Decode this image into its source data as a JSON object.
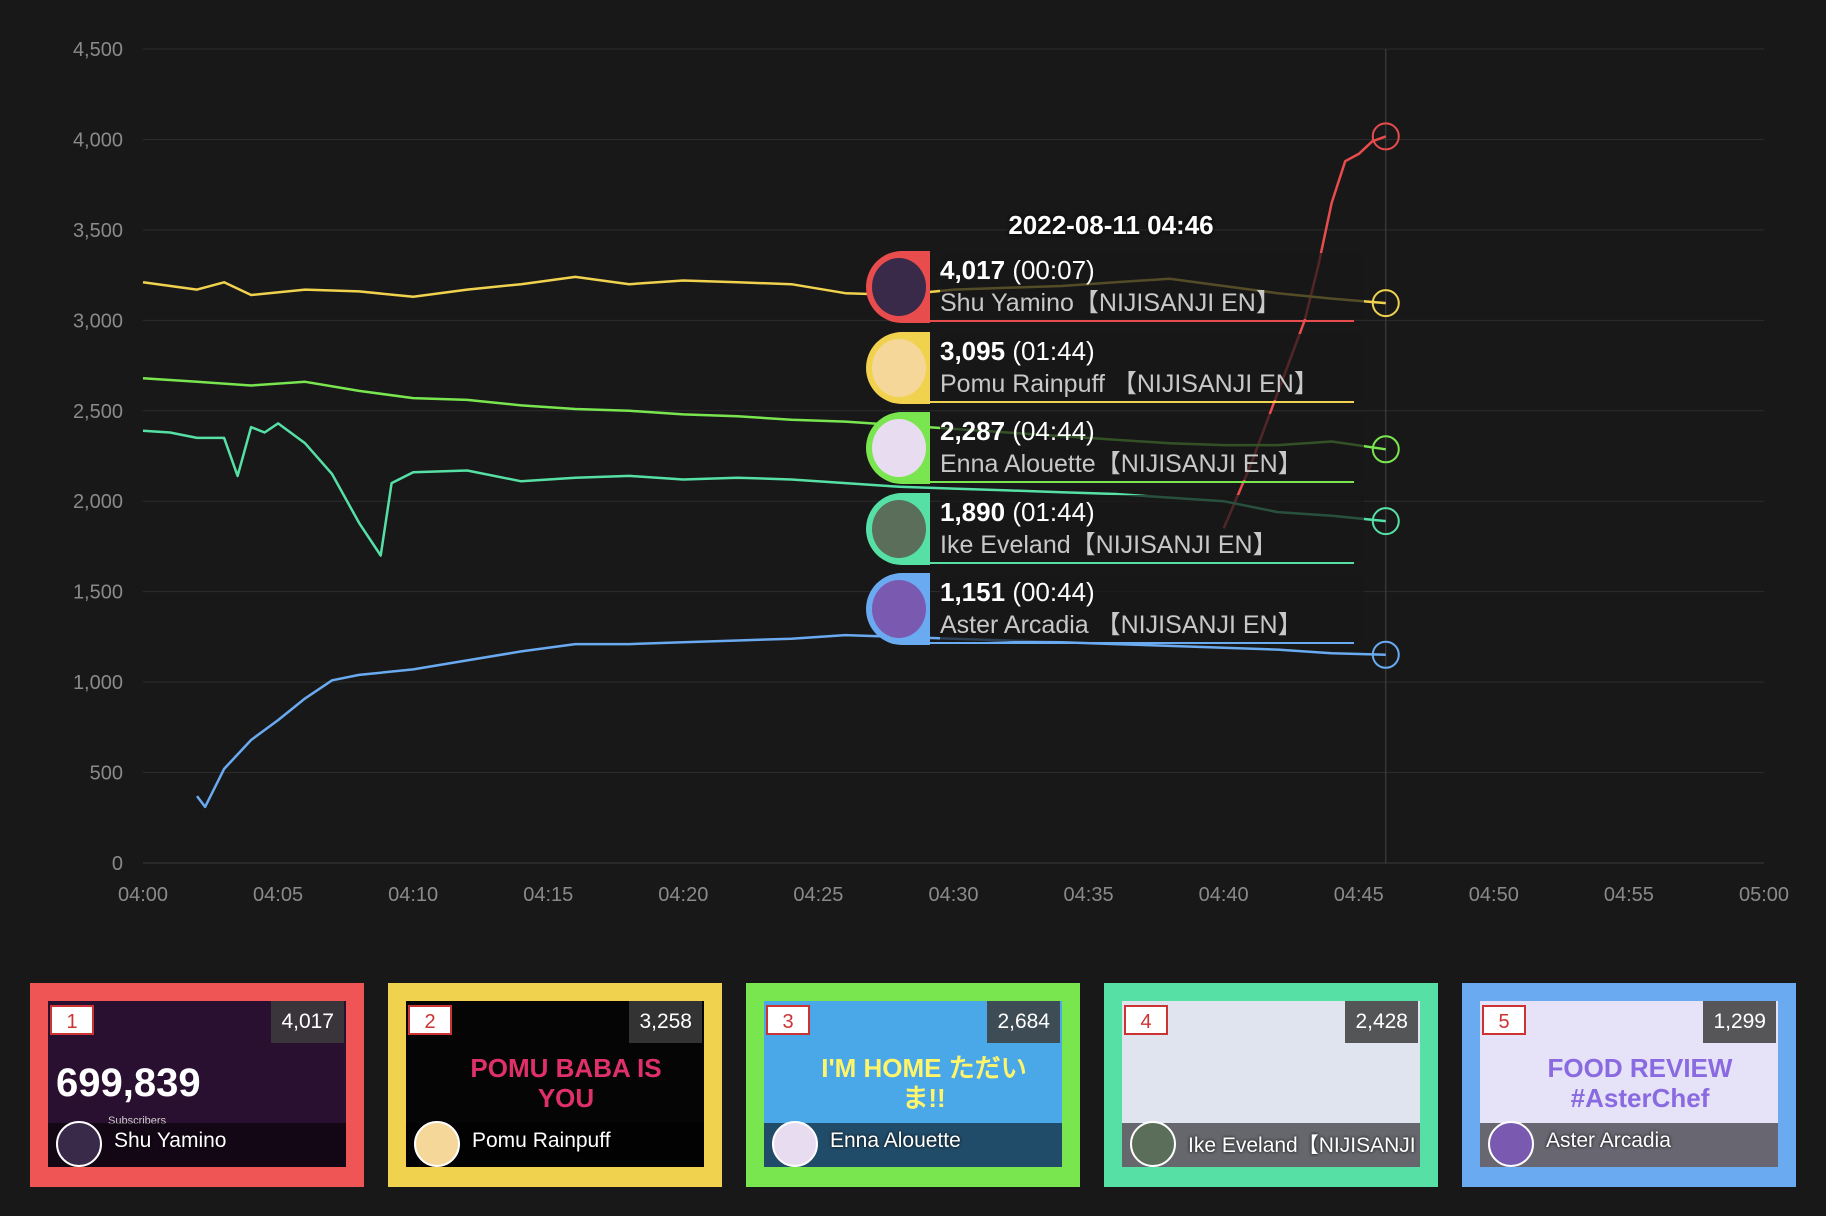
{
  "chart_data": {
    "type": "line",
    "xlim": [
      "04:00",
      "05:00"
    ],
    "ylim": [
      0,
      4500
    ],
    "x_ticks": [
      "04:00",
      "04:05",
      "04:10",
      "04:15",
      "04:20",
      "04:25",
      "04:30",
      "04:35",
      "04:40",
      "04:45",
      "04:50",
      "04:55",
      "05:00"
    ],
    "y_ticks": [
      "0",
      "500",
      "1,000",
      "1,500",
      "2,000",
      "2,500",
      "3,000",
      "3,500",
      "4,000",
      "4,500"
    ],
    "grid": true,
    "hover_time": "04:46",
    "series": [
      {
        "name": "Shu Yamino【NIJISANJI EN】",
        "color": "#e84c4c",
        "points": [
          [
            "04:40",
            1850
          ],
          [
            "04:41",
            2200
          ],
          [
            "04:42",
            2600
          ],
          [
            "04:43",
            3000
          ],
          [
            "04:43.5",
            3300
          ],
          [
            "04:44",
            3650
          ],
          [
            "04:44.5",
            3880
          ],
          [
            "04:45",
            3920
          ],
          [
            "04:45.5",
            3990
          ],
          [
            "04:46",
            4017
          ]
        ]
      },
      {
        "name": "Pomu Rainpuff 【NIJISANJI EN】",
        "color": "#f0d24e",
        "points": [
          [
            "04:00",
            3210
          ],
          [
            "04:02",
            3170
          ],
          [
            "04:03",
            3210
          ],
          [
            "04:04",
            3140
          ],
          [
            "04:06",
            3170
          ],
          [
            "04:08",
            3160
          ],
          [
            "04:10",
            3130
          ],
          [
            "04:12",
            3170
          ],
          [
            "04:14",
            3200
          ],
          [
            "04:16",
            3240
          ],
          [
            "04:18",
            3200
          ],
          [
            "04:20",
            3220
          ],
          [
            "04:22",
            3210
          ],
          [
            "04:24",
            3200
          ],
          [
            "04:26",
            3150
          ],
          [
            "04:28",
            3140
          ],
          [
            "04:30",
            3170
          ],
          [
            "04:32",
            3180
          ],
          [
            "04:34",
            3190
          ],
          [
            "04:36",
            3210
          ],
          [
            "04:38",
            3230
          ],
          [
            "04:40",
            3190
          ],
          [
            "04:42",
            3150
          ],
          [
            "04:44",
            3120
          ],
          [
            "04:46",
            3095
          ]
        ]
      },
      {
        "name": "Enna Alouette【NIJISANJI EN】",
        "color": "#7ae64f",
        "points": [
          [
            "04:00",
            2680
          ],
          [
            "04:02",
            2660
          ],
          [
            "04:04",
            2640
          ],
          [
            "04:06",
            2660
          ],
          [
            "04:08",
            2610
          ],
          [
            "04:10",
            2570
          ],
          [
            "04:12",
            2560
          ],
          [
            "04:14",
            2530
          ],
          [
            "04:16",
            2510
          ],
          [
            "04:18",
            2500
          ],
          [
            "04:20",
            2480
          ],
          [
            "04:22",
            2470
          ],
          [
            "04:24",
            2450
          ],
          [
            "04:26",
            2440
          ],
          [
            "04:28",
            2420
          ],
          [
            "04:30",
            2400
          ],
          [
            "04:32",
            2380
          ],
          [
            "04:34",
            2360
          ],
          [
            "04:36",
            2340
          ],
          [
            "04:38",
            2320
          ],
          [
            "04:40",
            2310
          ],
          [
            "04:42",
            2310
          ],
          [
            "04:44",
            2330
          ],
          [
            "04:46",
            2287
          ]
        ]
      },
      {
        "name": "Ike Eveland【NIJISANJI EN】",
        "color": "#56e0a5",
        "points": [
          [
            "04:00",
            2390
          ],
          [
            "04:01",
            2380
          ],
          [
            "04:02",
            2350
          ],
          [
            "04:03",
            2350
          ],
          [
            "04:03.5",
            2140
          ],
          [
            "04:04",
            2410
          ],
          [
            "04:04.5",
            2380
          ],
          [
            "04:05",
            2430
          ],
          [
            "04:06",
            2320
          ],
          [
            "04:07",
            2150
          ],
          [
            "04:08",
            1880
          ],
          [
            "04:08.8",
            1700
          ],
          [
            "04:09.2",
            2100
          ],
          [
            "04:10",
            2160
          ],
          [
            "04:12",
            2170
          ],
          [
            "04:14",
            2110
          ],
          [
            "04:16",
            2130
          ],
          [
            "04:18",
            2140
          ],
          [
            "04:20",
            2120
          ],
          [
            "04:22",
            2130
          ],
          [
            "04:24",
            2120
          ],
          [
            "04:26",
            2100
          ],
          [
            "04:28",
            2080
          ],
          [
            "04:30",
            2070
          ],
          [
            "04:32",
            2060
          ],
          [
            "04:34",
            2050
          ],
          [
            "04:36",
            2040
          ],
          [
            "04:38",
            2020
          ],
          [
            "04:40",
            2000
          ],
          [
            "04:42",
            1940
          ],
          [
            "04:44",
            1920
          ],
          [
            "04:46",
            1890
          ]
        ]
      },
      {
        "name": "Aster Arcadia 【NIJISANJI EN】",
        "color": "#6aaaf0",
        "points": [
          [
            "04:02",
            370
          ],
          [
            "04:02.3",
            310
          ],
          [
            "04:03",
            520
          ],
          [
            "04:04",
            680
          ],
          [
            "04:05",
            790
          ],
          [
            "04:06",
            910
          ],
          [
            "04:07",
            1010
          ],
          [
            "04:08",
            1040
          ],
          [
            "04:10",
            1070
          ],
          [
            "04:12",
            1120
          ],
          [
            "04:14",
            1170
          ],
          [
            "04:16",
            1210
          ],
          [
            "04:18",
            1210
          ],
          [
            "04:20",
            1220
          ],
          [
            "04:22",
            1230
          ],
          [
            "04:24",
            1240
          ],
          [
            "04:26",
            1260
          ],
          [
            "04:28",
            1250
          ],
          [
            "04:30",
            1240
          ],
          [
            "04:32",
            1230
          ],
          [
            "04:34",
            1220
          ],
          [
            "04:36",
            1210
          ],
          [
            "04:38",
            1200
          ],
          [
            "04:40",
            1190
          ],
          [
            "04:42",
            1180
          ],
          [
            "04:44",
            1160
          ],
          [
            "04:46",
            1151
          ]
        ]
      }
    ]
  },
  "tooltip": {
    "date": "2022-08-11 04:46",
    "rows": [
      {
        "value": "4,017",
        "duration": "(00:07)",
        "name": "Shu Yamino【NIJISANJI EN】",
        "color": "#e84c4c",
        "avatar_bg": "#3a2a4a"
      },
      {
        "value": "3,095",
        "duration": "(01:44)",
        "name": "Pomu Rainpuff 【NIJISANJI EN】",
        "color": "#f0d24e",
        "avatar_bg": "#f5d79a"
      },
      {
        "value": "2,287",
        "duration": "(04:44)",
        "name": "Enna Alouette【NIJISANJI EN】",
        "color": "#7ae64f",
        "avatar_bg": "#e8dcf0"
      },
      {
        "value": "1,890",
        "duration": "(01:44)",
        "name": "Ike Eveland【NIJISANJI EN】",
        "color": "#56e0a5",
        "avatar_bg": "#5a6e5a"
      },
      {
        "value": "1,151",
        "duration": "(00:44)",
        "name": "Aster Arcadia 【NIJISANJI EN】",
        "color": "#6aaaf0",
        "avatar_bg": "#7a5ab0"
      }
    ]
  },
  "cards": [
    {
      "rank": "1",
      "viewers": "4,017",
      "subscribers": "699,839",
      "subscribers_label": "Subscribers",
      "name": "Shu Yamino",
      "border": "#f05555",
      "art_bg": "#2a1030",
      "art_text": "",
      "art_text_color": "#fff"
    },
    {
      "rank": "2",
      "viewers": "3,258",
      "subscribers": "",
      "subscribers_label": "",
      "name": "Pomu Rainpuff",
      "border": "#f0d24e",
      "art_bg": "#050505",
      "art_text": "POMU BABA IS YOU",
      "art_text_color": "#e0306a"
    },
    {
      "rank": "3",
      "viewers": "2,684",
      "subscribers": "",
      "subscribers_label": "",
      "name": "Enna Alouette",
      "border": "#7ae64f",
      "art_bg": "#4aa8e8",
      "art_text": "I'M HOME ただいま!!",
      "art_text_color": "#fff56a"
    },
    {
      "rank": "4",
      "viewers": "2,428",
      "subscribers": "",
      "subscribers_label": "",
      "name": "Ike Eveland【NIJISANJI",
      "border": "#56e0a5",
      "art_bg": "#dfe4ef",
      "art_text": "",
      "art_text_color": "#fff"
    },
    {
      "rank": "5",
      "viewers": "1,299",
      "subscribers": "",
      "subscribers_label": "",
      "name": "Aster Arcadia",
      "border": "#6aaaf0",
      "art_bg": "#e6e2f8",
      "art_text": "FOOD REVIEW #AsterChef",
      "art_text_color": "#8a6ae0"
    }
  ]
}
